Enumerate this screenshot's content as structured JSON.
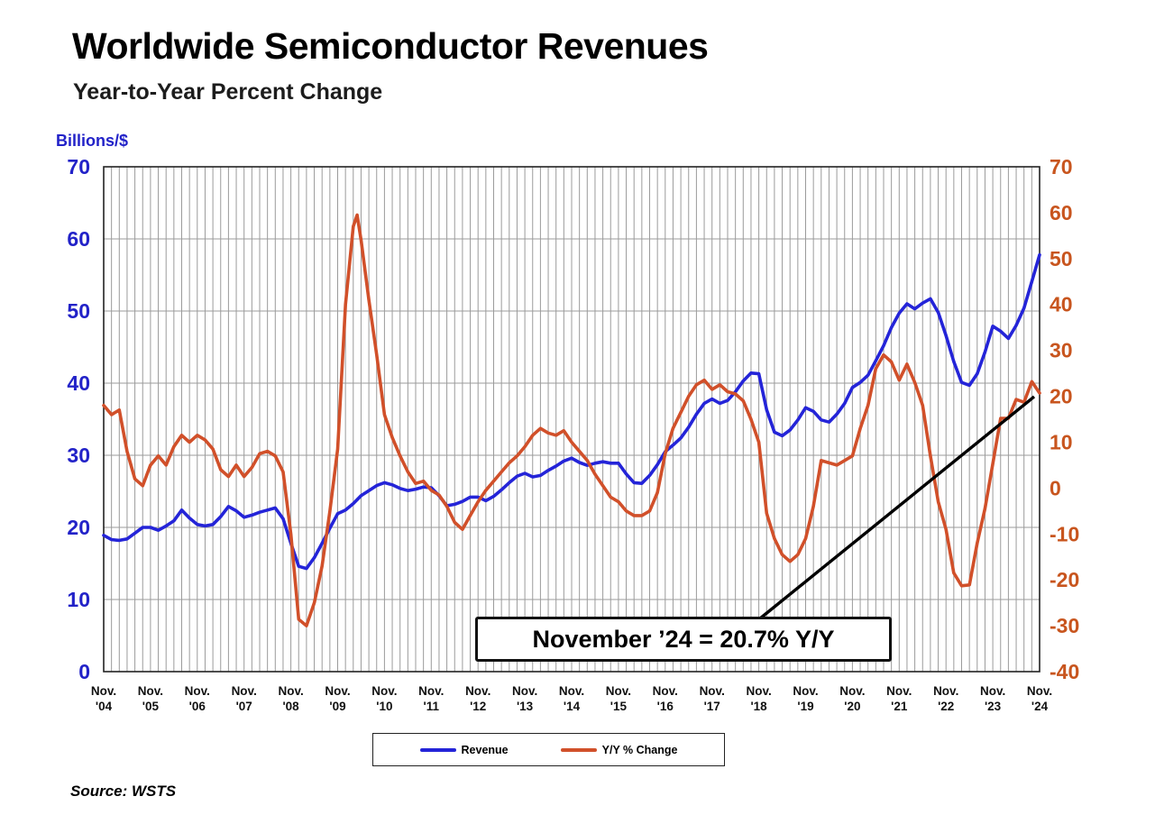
{
  "header": {
    "title": "Worldwide Semiconductor Revenues",
    "subtitle": "Year-to-Year Percent Change"
  },
  "footer": {
    "source": "Source: WSTS"
  },
  "chart_data": {
    "type": "line",
    "title": "Worldwide Semiconductor Revenues",
    "subtitle": "Year-to-Year Percent Change",
    "x_unit": "months since Nov 2004",
    "x_range": [
      0,
      240
    ],
    "grid_step_months": 2,
    "x_tick_prefix": "Nov.",
    "x_ticks": [
      {
        "m": 0,
        "year": "'04"
      },
      {
        "m": 12,
        "year": "'05"
      },
      {
        "m": 24,
        "year": "'06"
      },
      {
        "m": 36,
        "year": "'07"
      },
      {
        "m": 48,
        "year": "'08"
      },
      {
        "m": 60,
        "year": "'09"
      },
      {
        "m": 72,
        "year": "'10"
      },
      {
        "m": 84,
        "year": "'11"
      },
      {
        "m": 96,
        "year": "'12"
      },
      {
        "m": 108,
        "year": "'13"
      },
      {
        "m": 120,
        "year": "'14"
      },
      {
        "m": 132,
        "year": "'15"
      },
      {
        "m": 144,
        "year": "'16"
      },
      {
        "m": 156,
        "year": "'17"
      },
      {
        "m": 168,
        "year": "'18"
      },
      {
        "m": 180,
        "year": "'19"
      },
      {
        "m": 192,
        "year": "'20"
      },
      {
        "m": 204,
        "year": "'21"
      },
      {
        "m": 216,
        "year": "'22"
      },
      {
        "m": 228,
        "year": "'23"
      },
      {
        "m": 240,
        "year": "'24"
      }
    ],
    "left_axis": {
      "label": "Billions/$",
      "min": 0,
      "max": 70,
      "ticks": [
        70,
        60,
        50,
        40,
        30,
        20,
        10,
        0
      ],
      "color": "#2222c8"
    },
    "right_axis": {
      "min": -40,
      "max": 70,
      "ticks": [
        70,
        60,
        50,
        40,
        30,
        20,
        10,
        0,
        -10,
        -20,
        -30,
        -40
      ],
      "color": "#c8551e"
    },
    "grid": true,
    "legend_position": "bottom",
    "annotation": {
      "text": "November ’24 = 20.7% Y/Y",
      "arrow_to_x": 240,
      "arrow_to_y": 20.7
    },
    "series": [
      {
        "name": "Revenue",
        "axis": "left",
        "color": "#2424d8",
        "points": [
          [
            0,
            18.9
          ],
          [
            2,
            18.3
          ],
          [
            4,
            18.2
          ],
          [
            6,
            18.4
          ],
          [
            8,
            19.2
          ],
          [
            10,
            20.0
          ],
          [
            12,
            20.0
          ],
          [
            14,
            19.6
          ],
          [
            16,
            20.2
          ],
          [
            18,
            20.9
          ],
          [
            20,
            22.4
          ],
          [
            22,
            21.3
          ],
          [
            24,
            20.4
          ],
          [
            26,
            20.2
          ],
          [
            28,
            20.4
          ],
          [
            30,
            21.5
          ],
          [
            32,
            22.9
          ],
          [
            34,
            22.3
          ],
          [
            36,
            21.4
          ],
          [
            38,
            21.7
          ],
          [
            40,
            22.1
          ],
          [
            42,
            22.4
          ],
          [
            44,
            22.7
          ],
          [
            46,
            21.2
          ],
          [
            48,
            17.8
          ],
          [
            50,
            14.6
          ],
          [
            52,
            14.3
          ],
          [
            54,
            15.8
          ],
          [
            56,
            17.8
          ],
          [
            58,
            19.9
          ],
          [
            60,
            21.9
          ],
          [
            62,
            22.4
          ],
          [
            64,
            23.3
          ],
          [
            66,
            24.4
          ],
          [
            68,
            25.1
          ],
          [
            70,
            25.8
          ],
          [
            72,
            26.2
          ],
          [
            74,
            25.9
          ],
          [
            76,
            25.4
          ],
          [
            78,
            25.1
          ],
          [
            80,
            25.3
          ],
          [
            82,
            25.6
          ],
          [
            84,
            25.5
          ],
          [
            86,
            24.4
          ],
          [
            88,
            23.0
          ],
          [
            90,
            23.2
          ],
          [
            92,
            23.6
          ],
          [
            94,
            24.2
          ],
          [
            96,
            24.2
          ],
          [
            98,
            23.7
          ],
          [
            100,
            24.3
          ],
          [
            102,
            25.2
          ],
          [
            104,
            26.2
          ],
          [
            106,
            27.1
          ],
          [
            108,
            27.5
          ],
          [
            110,
            27.0
          ],
          [
            112,
            27.2
          ],
          [
            114,
            27.9
          ],
          [
            116,
            28.5
          ],
          [
            118,
            29.2
          ],
          [
            120,
            29.6
          ],
          [
            122,
            29.0
          ],
          [
            124,
            28.6
          ],
          [
            126,
            28.9
          ],
          [
            128,
            29.1
          ],
          [
            130,
            28.9
          ],
          [
            132,
            28.9
          ],
          [
            134,
            27.4
          ],
          [
            136,
            26.2
          ],
          [
            138,
            26.1
          ],
          [
            140,
            27.2
          ],
          [
            142,
            28.7
          ],
          [
            144,
            30.5
          ],
          [
            146,
            31.4
          ],
          [
            148,
            32.4
          ],
          [
            150,
            33.9
          ],
          [
            152,
            35.7
          ],
          [
            154,
            37.2
          ],
          [
            156,
            37.8
          ],
          [
            158,
            37.2
          ],
          [
            160,
            37.6
          ],
          [
            162,
            38.8
          ],
          [
            164,
            40.3
          ],
          [
            166,
            41.4
          ],
          [
            168,
            41.3
          ],
          [
            170,
            36.3
          ],
          [
            172,
            33.2
          ],
          [
            174,
            32.7
          ],
          [
            176,
            33.5
          ],
          [
            178,
            34.9
          ],
          [
            180,
            36.6
          ],
          [
            182,
            36.1
          ],
          [
            184,
            34.9
          ],
          [
            186,
            34.6
          ],
          [
            188,
            35.7
          ],
          [
            190,
            37.2
          ],
          [
            192,
            39.4
          ],
          [
            194,
            40.1
          ],
          [
            196,
            41.1
          ],
          [
            198,
            43.1
          ],
          [
            200,
            45.2
          ],
          [
            202,
            47.7
          ],
          [
            204,
            49.7
          ],
          [
            206,
            51.0
          ],
          [
            208,
            50.3
          ],
          [
            210,
            51.1
          ],
          [
            212,
            51.7
          ],
          [
            214,
            49.8
          ],
          [
            216,
            46.6
          ],
          [
            218,
            43.0
          ],
          [
            220,
            40.1
          ],
          [
            222,
            39.7
          ],
          [
            224,
            41.3
          ],
          [
            226,
            44.3
          ],
          [
            228,
            47.9
          ],
          [
            230,
            47.2
          ],
          [
            232,
            46.2
          ],
          [
            234,
            48.0
          ],
          [
            236,
            50.4
          ],
          [
            238,
            54.1
          ],
          [
            240,
            57.8
          ]
        ]
      },
      {
        "name": "Y/Y % Change",
        "axis": "right",
        "color": "#d1502a",
        "points": [
          [
            0,
            18
          ],
          [
            2,
            16
          ],
          [
            4,
            17
          ],
          [
            6,
            8
          ],
          [
            8,
            2
          ],
          [
            10,
            0.5
          ],
          [
            12,
            5
          ],
          [
            14,
            7
          ],
          [
            16,
            5
          ],
          [
            18,
            9
          ],
          [
            20,
            11.5
          ],
          [
            22,
            10
          ],
          [
            24,
            11.5
          ],
          [
            26,
            10.5
          ],
          [
            28,
            8.5
          ],
          [
            30,
            4
          ],
          [
            32,
            2.5
          ],
          [
            34,
            5
          ],
          [
            36,
            2.5
          ],
          [
            38,
            4.5
          ],
          [
            40,
            7.5
          ],
          [
            42,
            8
          ],
          [
            44,
            7
          ],
          [
            46,
            3.5
          ],
          [
            48,
            -10
          ],
          [
            50,
            -28.6
          ],
          [
            52,
            -30
          ],
          [
            54,
            -25
          ],
          [
            56,
            -17
          ],
          [
            58,
            -5
          ],
          [
            60,
            8.5
          ],
          [
            62,
            40
          ],
          [
            64,
            57
          ],
          [
            65,
            59.5
          ],
          [
            66,
            54
          ],
          [
            68,
            41
          ],
          [
            70,
            29
          ],
          [
            72,
            16
          ],
          [
            74,
            11
          ],
          [
            76,
            7
          ],
          [
            78,
            3.5
          ],
          [
            80,
            1
          ],
          [
            82,
            1.5
          ],
          [
            84,
            -0.5
          ],
          [
            86,
            -1.5
          ],
          [
            88,
            -4
          ],
          [
            90,
            -7.5
          ],
          [
            92,
            -9
          ],
          [
            94,
            -6
          ],
          [
            96,
            -3
          ],
          [
            98,
            -0.5
          ],
          [
            100,
            1.5
          ],
          [
            102,
            3.5
          ],
          [
            104,
            5.5
          ],
          [
            106,
            7
          ],
          [
            108,
            9
          ],
          [
            110,
            11.5
          ],
          [
            112,
            13
          ],
          [
            114,
            12
          ],
          [
            116,
            11.5
          ],
          [
            118,
            12.5
          ],
          [
            120,
            10
          ],
          [
            122,
            8
          ],
          [
            124,
            6
          ],
          [
            126,
            3
          ],
          [
            128,
            0.5
          ],
          [
            130,
            -2
          ],
          [
            132,
            -3
          ],
          [
            134,
            -5
          ],
          [
            136,
            -6
          ],
          [
            138,
            -6
          ],
          [
            140,
            -5
          ],
          [
            142,
            -1
          ],
          [
            144,
            7.5
          ],
          [
            146,
            13
          ],
          [
            148,
            16.5
          ],
          [
            150,
            20
          ],
          [
            152,
            22.5
          ],
          [
            154,
            23.5
          ],
          [
            156,
            21.5
          ],
          [
            158,
            22.5
          ],
          [
            160,
            21
          ],
          [
            162,
            20.5
          ],
          [
            164,
            19
          ],
          [
            166,
            15
          ],
          [
            168,
            10
          ],
          [
            170,
            -5.5
          ],
          [
            172,
            -11
          ],
          [
            174,
            -14.5
          ],
          [
            176,
            -16
          ],
          [
            178,
            -14.5
          ],
          [
            180,
            -11
          ],
          [
            182,
            -4
          ],
          [
            184,
            6
          ],
          [
            186,
            5.5
          ],
          [
            188,
            5
          ],
          [
            190,
            6
          ],
          [
            192,
            7
          ],
          [
            194,
            13
          ],
          [
            196,
            18
          ],
          [
            198,
            26
          ],
          [
            200,
            29
          ],
          [
            202,
            27.5
          ],
          [
            204,
            23.5
          ],
          [
            206,
            27
          ],
          [
            208,
            23
          ],
          [
            210,
            18
          ],
          [
            212,
            7
          ],
          [
            214,
            -3
          ],
          [
            216,
            -9
          ],
          [
            218,
            -18.5
          ],
          [
            220,
            -21.3
          ],
          [
            222,
            -21.1
          ],
          [
            224,
            -12
          ],
          [
            226,
            -4.5
          ],
          [
            228,
            5.3
          ],
          [
            230,
            15.2
          ],
          [
            232,
            15.2
          ],
          [
            234,
            19.3
          ],
          [
            236,
            18.7
          ],
          [
            238,
            23.2
          ],
          [
            240,
            20.7
          ]
        ]
      }
    ]
  }
}
